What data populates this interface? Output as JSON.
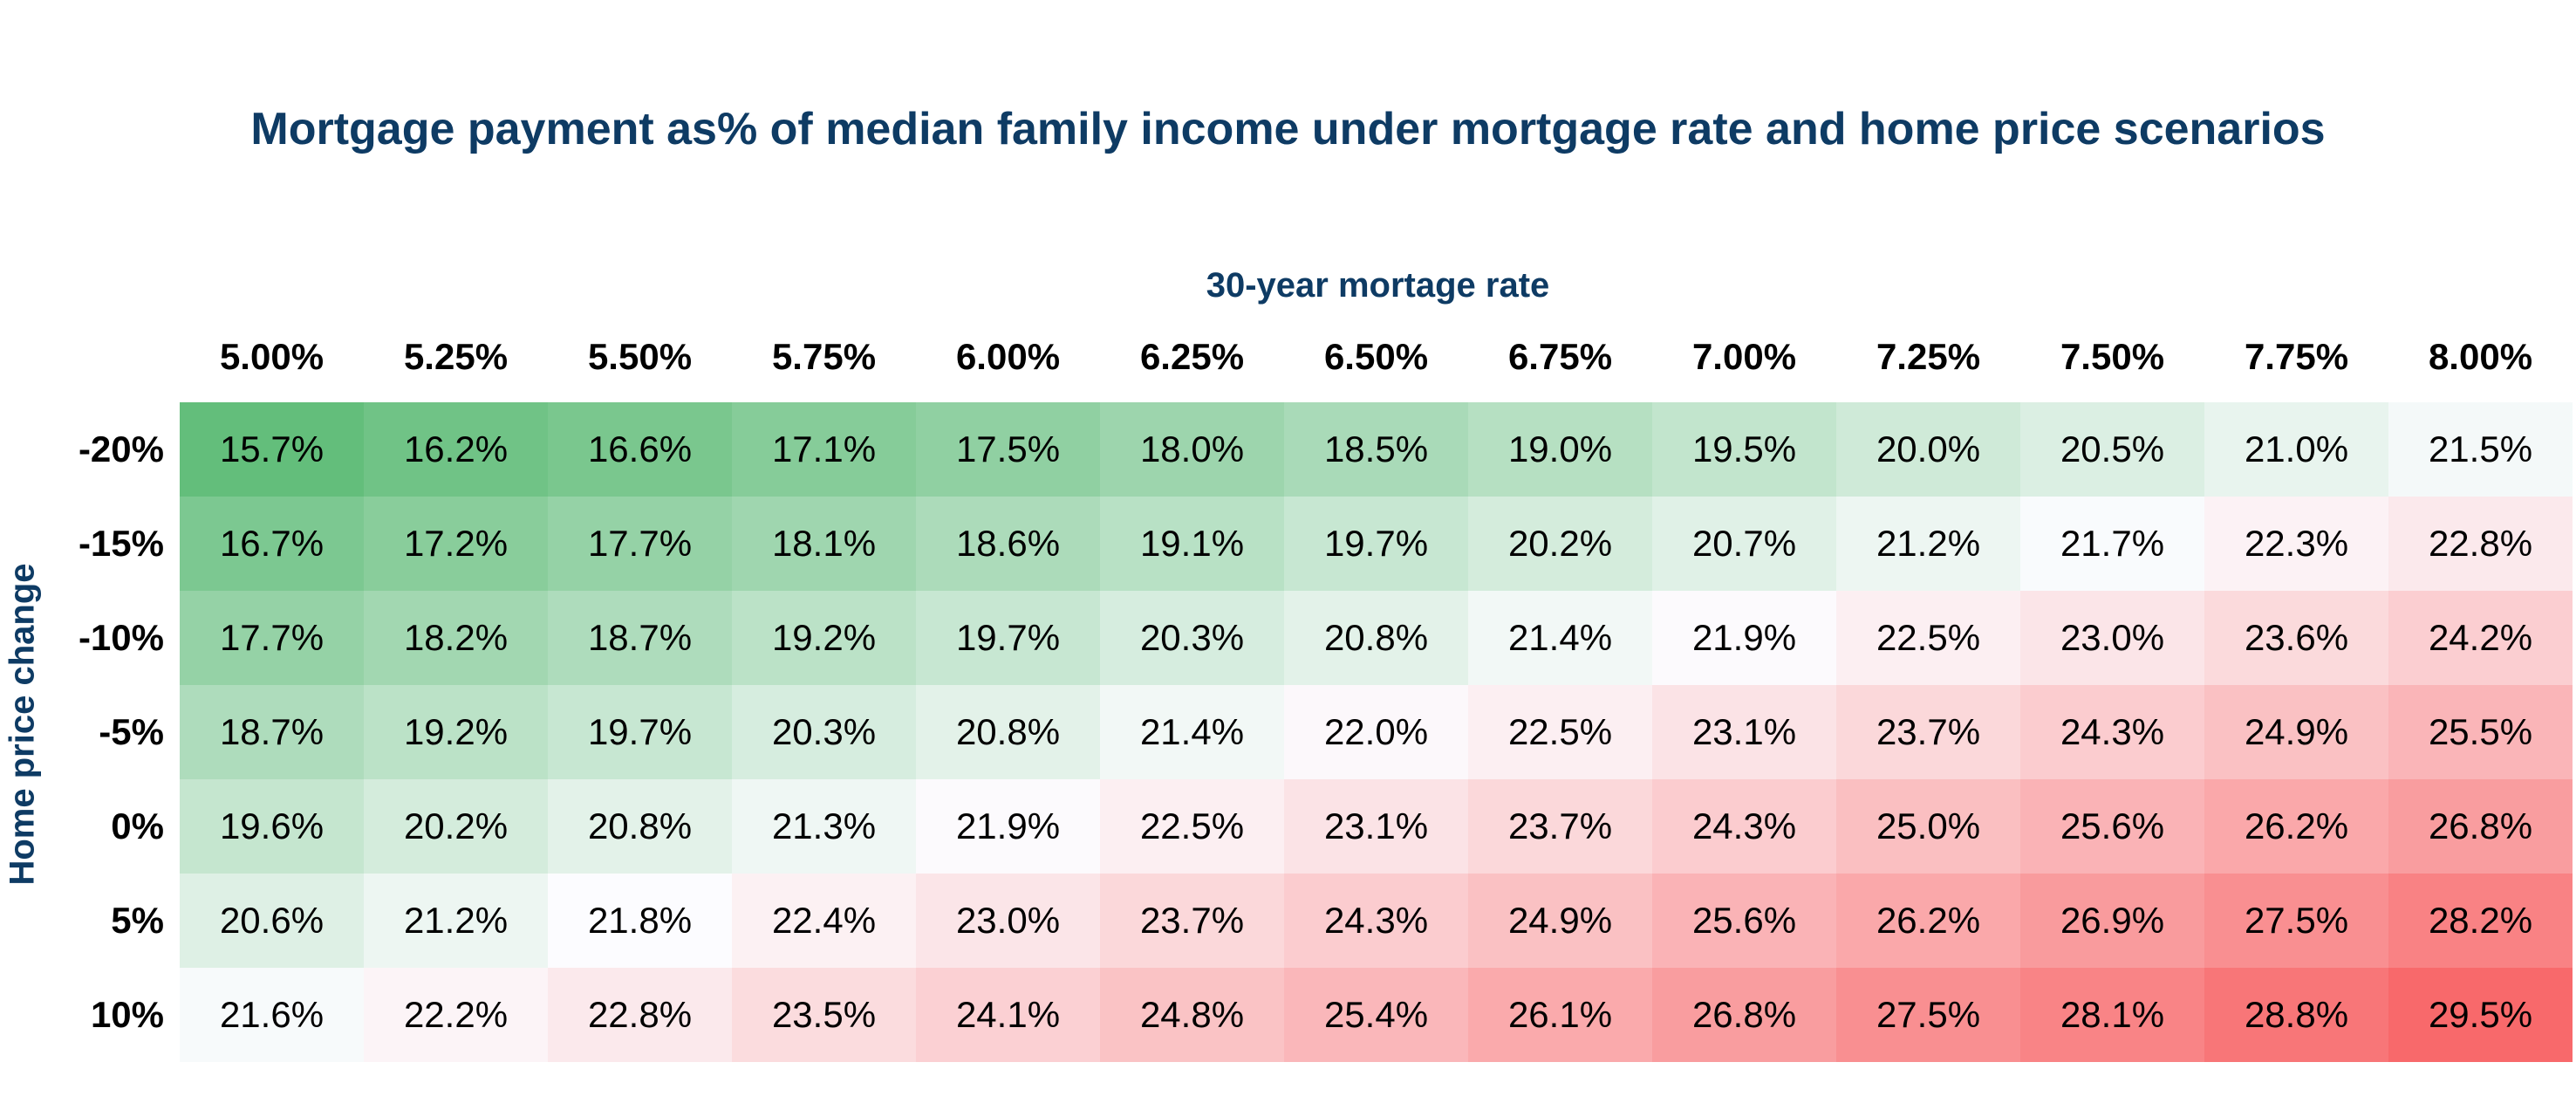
{
  "chart_data": {
    "type": "heatmap",
    "title": "Mortgage payment as% of median family income under mortgage rate and home price scenarios",
    "xlabel": "30-year mortage rate",
    "ylabel": "Home price change",
    "x": [
      "5.00%",
      "5.25%",
      "5.50%",
      "5.75%",
      "6.00%",
      "6.25%",
      "6.50%",
      "6.75%",
      "7.00%",
      "7.25%",
      "7.50%",
      "7.75%",
      "8.00%"
    ],
    "y": [
      "-20%",
      "-15%",
      "-10%",
      "-5%",
      "0%",
      "5%",
      "10%"
    ],
    "values": [
      [
        15.7,
        16.2,
        16.6,
        17.1,
        17.5,
        18.0,
        18.5,
        19.0,
        19.5,
        20.0,
        20.5,
        21.0,
        21.5
      ],
      [
        16.7,
        17.2,
        17.7,
        18.1,
        18.6,
        19.1,
        19.7,
        20.2,
        20.7,
        21.2,
        21.7,
        22.3,
        22.8
      ],
      [
        17.7,
        18.2,
        18.7,
        19.2,
        19.7,
        20.3,
        20.8,
        21.4,
        21.9,
        22.5,
        23.0,
        23.6,
        24.2
      ],
      [
        18.7,
        19.2,
        19.7,
        20.3,
        20.8,
        21.4,
        22.0,
        22.5,
        23.1,
        23.7,
        24.3,
        24.9,
        25.5
      ],
      [
        19.6,
        20.2,
        20.8,
        21.3,
        21.9,
        22.5,
        23.1,
        23.7,
        24.3,
        25.0,
        25.6,
        26.2,
        26.8
      ],
      [
        20.6,
        21.2,
        21.8,
        22.4,
        23.0,
        23.7,
        24.3,
        24.9,
        25.6,
        26.2,
        26.9,
        27.5,
        28.2
      ],
      [
        21.6,
        22.2,
        22.8,
        23.5,
        24.1,
        24.8,
        25.4,
        26.1,
        26.8,
        27.5,
        28.1,
        28.8,
        29.5
      ]
    ],
    "value_format": "%",
    "color_scale": {
      "low": "#63be7b",
      "mid": "#fcfcff",
      "high": "#f8696b"
    }
  }
}
